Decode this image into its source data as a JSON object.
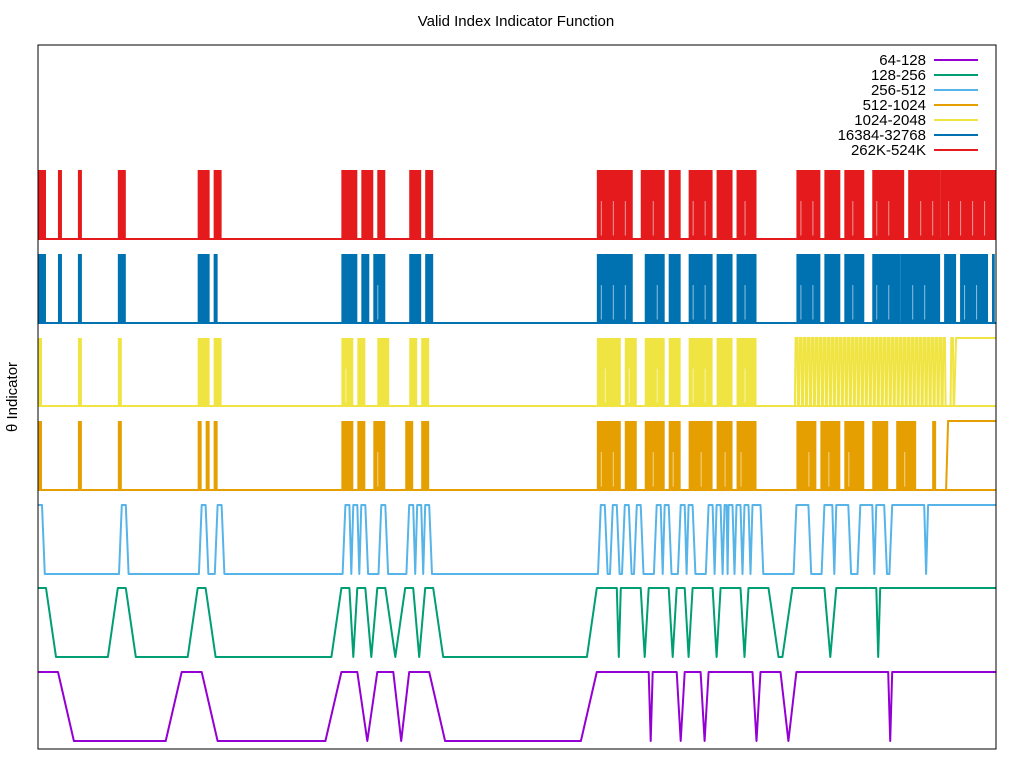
{
  "chart_data": {
    "type": "line",
    "title": "Valid Index Indicator Function",
    "xlabel": "",
    "ylabel": "θ Indicator",
    "grid": false,
    "legend_position": "top-right",
    "x_count": 240,
    "series": [
      {
        "name": "64-128",
        "color": "#9400d3",
        "segments": [
          [
            0,
            5
          ],
          [
            36,
            41
          ],
          [
            76,
            80
          ],
          [
            85,
            89
          ],
          [
            93,
            98
          ],
          [
            140,
            153
          ],
          [
            154,
            160
          ],
          [
            162,
            166
          ],
          [
            168,
            179
          ],
          [
            181,
            186
          ],
          [
            190,
            213
          ],
          [
            214,
            240
          ]
        ]
      },
      {
        "name": "128-256",
        "color": "#009e73",
        "segments": [
          [
            0,
            2
          ],
          [
            20,
            22
          ],
          [
            40,
            42
          ],
          [
            76,
            78
          ],
          [
            80,
            82
          ],
          [
            85,
            87
          ],
          [
            92,
            94
          ],
          [
            97,
            99
          ],
          [
            140,
            145
          ],
          [
            146,
            151
          ],
          [
            153,
            158
          ],
          [
            160,
            162
          ],
          [
            164,
            169
          ],
          [
            171,
            176
          ],
          [
            178,
            183
          ],
          [
            189,
            197
          ],
          [
            200,
            210
          ],
          [
            211,
            240
          ]
        ]
      },
      {
        "name": "256-512",
        "color": "#56b4e9",
        "segments": [
          [
            0,
            1
          ],
          [
            21,
            22
          ],
          [
            41,
            42
          ],
          [
            45,
            46
          ],
          [
            77,
            78
          ],
          [
            79,
            80
          ],
          [
            81,
            82
          ],
          [
            86,
            87
          ],
          [
            93,
            94
          ],
          [
            95,
            96
          ],
          [
            97,
            98
          ],
          [
            141,
            142
          ],
          [
            144,
            145
          ],
          [
            147,
            148
          ],
          [
            150,
            151
          ],
          [
            155,
            156
          ],
          [
            157,
            158
          ],
          [
            161,
            162
          ],
          [
            163,
            164
          ],
          [
            168,
            169
          ],
          [
            170,
            171
          ],
          [
            172,
            172.5
          ],
          [
            173,
            174
          ],
          [
            175,
            176
          ],
          [
            177,
            178
          ],
          [
            179,
            181
          ],
          [
            190,
            193
          ],
          [
            197,
            199
          ],
          [
            200,
            203
          ],
          [
            206,
            209
          ],
          [
            210,
            212
          ],
          [
            214,
            222
          ],
          [
            223,
            240
          ]
        ]
      }
    ],
    "dense_series": [
      {
        "name": "512-1024",
        "color": "#e69f00",
        "fill": true,
        "clusters": [
          [
            0,
            1
          ],
          [
            10,
            11
          ],
          [
            20,
            21
          ],
          [
            40,
            41
          ],
          [
            42,
            43
          ],
          [
            44,
            45
          ],
          [
            76,
            79
          ],
          [
            80,
            82
          ],
          [
            84,
            87
          ],
          [
            92,
            94
          ],
          [
            96,
            98
          ],
          [
            140,
            146
          ],
          [
            147,
            150
          ],
          [
            152,
            157
          ],
          [
            158,
            161
          ],
          [
            163,
            169
          ],
          [
            170,
            174
          ],
          [
            175,
            180
          ],
          [
            190,
            195
          ],
          [
            196,
            201
          ],
          [
            202,
            207
          ],
          [
            209,
            213
          ],
          [
            215,
            220
          ],
          [
            224,
            225
          ]
        ],
        "long_segments": [
          [
            228,
            240
          ]
        ]
      },
      {
        "name": "1024-2048",
        "color": "#f0e442",
        "fill": true,
        "clusters": [
          [
            0,
            1
          ],
          [
            10,
            11
          ],
          [
            20,
            21
          ],
          [
            40,
            43
          ],
          [
            44,
            46
          ],
          [
            76,
            79
          ],
          [
            80,
            82
          ],
          [
            85,
            88
          ],
          [
            93,
            95
          ],
          [
            96,
            98
          ],
          [
            140,
            146
          ],
          [
            147,
            150
          ],
          [
            152,
            157
          ],
          [
            158,
            161
          ],
          [
            163,
            169
          ],
          [
            170,
            174
          ],
          [
            175,
            180
          ]
        ],
        "spikes": [
          190,
          191,
          192,
          193,
          194,
          195,
          196,
          197,
          198,
          199,
          200,
          201,
          202,
          203,
          204,
          205,
          206,
          207,
          208,
          209,
          210,
          211,
          212,
          213,
          214,
          215,
          216,
          217,
          218,
          219,
          220,
          221,
          222,
          223,
          224,
          225,
          226,
          227,
          229
        ],
        "long_segments": [
          [
            230,
            240
          ]
        ]
      },
      {
        "name": "16384-32768",
        "color": "#0072b2",
        "fill": true,
        "clusters": [
          [
            0,
            2
          ],
          [
            5,
            6
          ],
          [
            10,
            11
          ],
          [
            20,
            22
          ],
          [
            40,
            43
          ],
          [
            44,
            45
          ],
          [
            76,
            80
          ],
          [
            81,
            83
          ],
          [
            84,
            87
          ],
          [
            93,
            96
          ],
          [
            97,
            99
          ],
          [
            140,
            149
          ],
          [
            152,
            157
          ],
          [
            158,
            161
          ],
          [
            163,
            169
          ],
          [
            170,
            174
          ],
          [
            175,
            180
          ],
          [
            190,
            196
          ],
          [
            197,
            201
          ],
          [
            202,
            207
          ],
          [
            209,
            216
          ],
          [
            216,
            226
          ],
          [
            227,
            230
          ],
          [
            231,
            238
          ],
          [
            239,
            239.7
          ]
        ]
      },
      {
        "name": "262K-524K",
        "color": "#e41a1c",
        "fill": true,
        "clusters": [
          [
            0,
            2
          ],
          [
            5,
            6
          ],
          [
            10,
            11
          ],
          [
            20,
            22
          ],
          [
            40,
            43
          ],
          [
            44,
            46
          ],
          [
            76,
            80
          ],
          [
            81,
            84
          ],
          [
            85,
            87
          ],
          [
            93,
            96
          ],
          [
            97,
            99
          ],
          [
            140,
            149
          ],
          [
            151,
            157
          ],
          [
            158,
            161
          ],
          [
            163,
            169
          ],
          [
            170,
            174
          ],
          [
            175,
            180
          ],
          [
            190,
            196
          ],
          [
            197,
            201
          ],
          [
            202,
            207
          ],
          [
            209,
            217
          ],
          [
            218,
            226
          ],
          [
            226,
            240
          ]
        ]
      }
    ]
  }
}
